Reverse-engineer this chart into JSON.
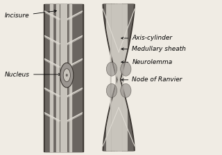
{
  "bg_color": "#f0ece4",
  "dark": "#3a3530",
  "mid": "#6a6560",
  "light": "#9a9590",
  "vlight": "#c8c4bc",
  "white_line": "#dedad2",
  "labels_left": [
    {
      "text": "Incisure",
      "xt": 0.02,
      "yt": 0.9,
      "xa": 0.265,
      "ya": 0.935
    },
    {
      "text": "Nucleus",
      "xt": 0.02,
      "yt": 0.52,
      "xa": 0.285,
      "ya": 0.52
    }
  ],
  "labels_right": [
    {
      "text": "Node of Ranvier",
      "xt": 0.595,
      "yt": 0.485,
      "xa": 0.535,
      "ya": 0.485
    },
    {
      "text": "Neurolemma",
      "xt": 0.595,
      "yt": 0.6,
      "xa": 0.535,
      "ya": 0.6
    },
    {
      "text": "Medullary sheath",
      "xt": 0.595,
      "yt": 0.685,
      "xa": 0.535,
      "ya": 0.685
    },
    {
      "text": "Axis-cylinder",
      "xt": 0.595,
      "yt": 0.755,
      "xa": 0.535,
      "ya": 0.755
    }
  ]
}
